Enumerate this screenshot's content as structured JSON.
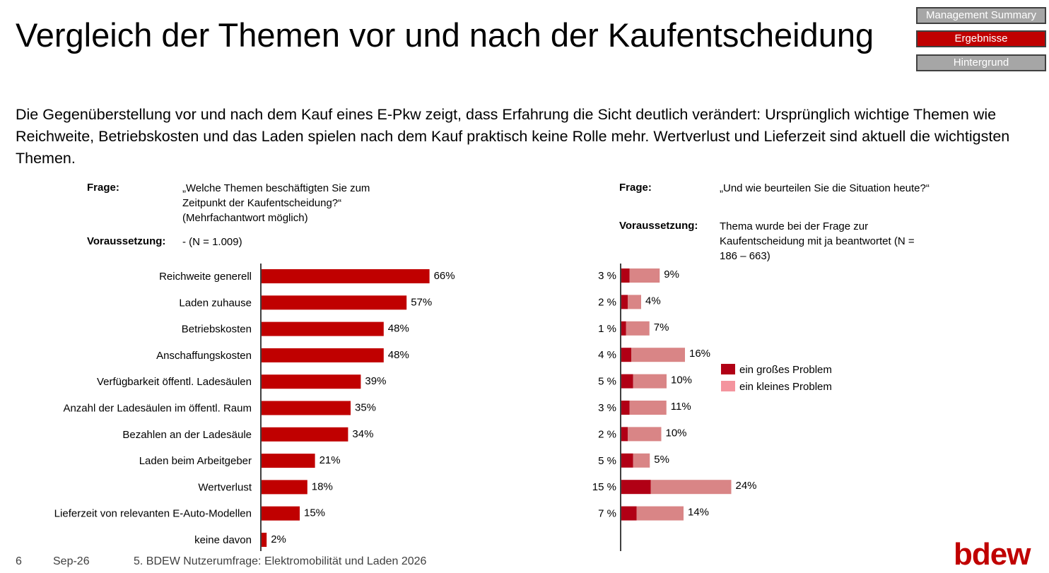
{
  "title": "Vergleich der Themen vor und nach der Kaufentscheidung",
  "nav": [
    {
      "label": "Management Summary",
      "active": false
    },
    {
      "label": "Ergebnisse",
      "active": true
    },
    {
      "label": "Hintergrund",
      "active": false
    }
  ],
  "colors": {
    "accent": "#c00000",
    "nav_inactive": "#a6a6a6",
    "big_problem": "#b10015",
    "small_problem": "#d98586"
  },
  "intro": "Die Gegenüberstellung vor und nach dem Kauf eines E-Pkw zeigt, dass Erfahrung die Sicht deutlich verändert: Ursprünglich wichtige Themen wie Reichweite, Betriebskosten und das Laden spielen nach dem Kauf praktisch keine Rolle mehr. Wertverlust und Lieferzeit sind aktuell die wichtigsten Themen.",
  "left": {
    "frage_label": "Frage:",
    "frage_text": "„Welche Themen beschäftigten Sie zum Zeitpunkt der Kaufentscheidung?“ (Mehrfachantwort möglich)",
    "vor_label": "Voraussetzung:",
    "vor_text": "- (N = 1.009)"
  },
  "right": {
    "frage_label": "Frage:",
    "frage_text": "„Und wie beurteilen Sie die Situation heute?“",
    "vor_label": "Voraussetzung:",
    "vor_text": "Thema wurde bei der Frage zur Kaufentscheidung mit ja beantwortet (N = 186 – 663)"
  },
  "legend": {
    "big": "ein großes Problem",
    "small": "ein kleines Problem"
  },
  "chart_data": [
    {
      "type": "bar",
      "orientation": "horizontal",
      "categories": [
        "Reichweite generell",
        "Laden zuhause",
        "Betriebskosten",
        "Anschaffungskosten",
        "Verfügbarkeit öffentl. Ladesäulen",
        "Anzahl der Ladesäulen im öffentl. Raum",
        "Bezahlen an der Ladesäule",
        "Laden beim Arbeitgeber",
        "Wertverlust",
        "Lieferzeit von relevanten E-Auto-Modellen",
        "keine davon"
      ],
      "values": [
        66,
        57,
        48,
        48,
        39,
        35,
        34,
        21,
        18,
        15,
        2
      ],
      "value_labels": [
        "66%",
        "57%",
        "48%",
        "48%",
        "39%",
        "35%",
        "34%",
        "21%",
        "18%",
        "15%",
        "2%"
      ],
      "unit": "%"
    },
    {
      "type": "bar",
      "orientation": "horizontal",
      "stacked": true,
      "series": [
        {
          "name": "ein großes Problem",
          "values": [
            3,
            2,
            1,
            4,
            5,
            3,
            2,
            5,
            15,
            7
          ],
          "labels": [
            "3 %",
            "2 %",
            "1 %",
            "4 %",
            "5 %",
            "3 %",
            "2 %",
            "5 %",
            "15 %",
            "7 %"
          ]
        },
        {
          "name": "ein kleines Problem",
          "values": [
            9,
            4,
            7,
            16,
            10,
            11,
            10,
            5,
            24,
            14
          ],
          "labels": [
            "9%",
            "4%",
            "7%",
            "16%",
            "10%",
            "11%",
            "10%",
            "5%",
            "24%",
            "14%"
          ]
        }
      ],
      "unit": "%"
    }
  ],
  "footer": {
    "page": "6",
    "date": "Sep-26",
    "source": "5. BDEW Nutzerumfrage: Elektromobilität und Laden 2026"
  },
  "logo": "bdew"
}
